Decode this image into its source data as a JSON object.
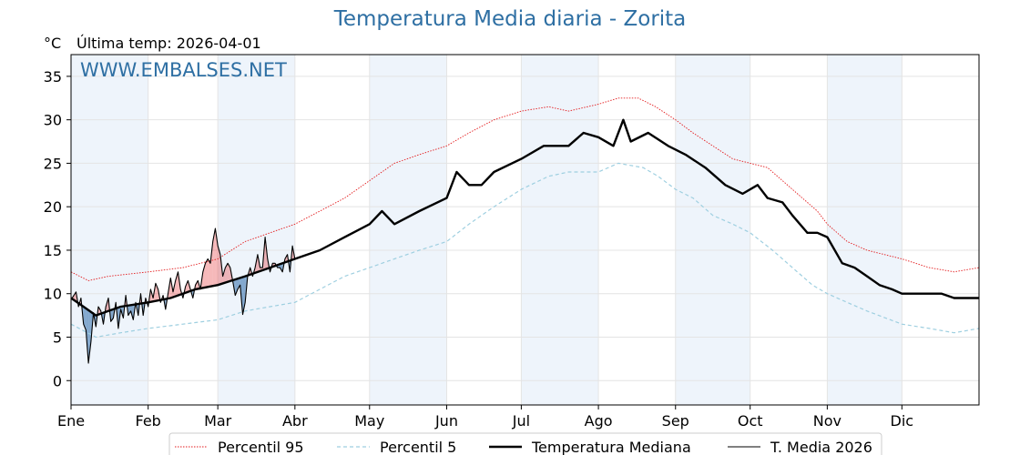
{
  "header": {
    "title": "Temperatura Media diaria - Zorita",
    "unit": "°C",
    "last_temp": "Última temp: 2026-04-01"
  },
  "watermark": "WWW.EMBALSES.NET",
  "colors": {
    "p95": "#e31a1c",
    "p5": "#9ecfe0",
    "median": "#000000",
    "current": "#000000",
    "fill_above": "#e8474a",
    "fill_below": "#4a7fb5",
    "band": "#eef4fb",
    "title": "#2e6fa3"
  },
  "chart_data": {
    "type": "line",
    "title": "Temperatura Media diaria - Zorita",
    "ylabel": "°C",
    "xlabel": "",
    "ylim": [
      -2.8,
      37.5
    ],
    "yticks": [
      0,
      5,
      10,
      15,
      20,
      25,
      30,
      35
    ],
    "xlim": [
      0,
      365
    ],
    "month_labels": [
      "Ene",
      "Feb",
      "Mar",
      "Abr",
      "May",
      "Jun",
      "Jul",
      "Ago",
      "Sep",
      "Oct",
      "Nov",
      "Dic"
    ],
    "month_starts": [
      0,
      31,
      59,
      90,
      120,
      151,
      181,
      212,
      243,
      273,
      304,
      334
    ],
    "shaded_months": [
      0,
      2,
      4,
      6,
      8,
      10
    ],
    "grid": true,
    "legend_position": "bottom",
    "series": [
      {
        "name": "Percentil 95",
        "style": "dotted-red",
        "points": [
          [
            0,
            12.5
          ],
          [
            7,
            11.5
          ],
          [
            15,
            12
          ],
          [
            31,
            12.5
          ],
          [
            45,
            13
          ],
          [
            59,
            14
          ],
          [
            70,
            16
          ],
          [
            80,
            17
          ],
          [
            90,
            18
          ],
          [
            100,
            19.5
          ],
          [
            110,
            21
          ],
          [
            120,
            23
          ],
          [
            130,
            25
          ],
          [
            140,
            26
          ],
          [
            151,
            27
          ],
          [
            160,
            28.5
          ],
          [
            170,
            30
          ],
          [
            181,
            31
          ],
          [
            192,
            31.5
          ],
          [
            200,
            31
          ],
          [
            212,
            31.8
          ],
          [
            220,
            32.5
          ],
          [
            228,
            32.5
          ],
          [
            235,
            31.5
          ],
          [
            243,
            30
          ],
          [
            250,
            28.5
          ],
          [
            258,
            27
          ],
          [
            266,
            25.5
          ],
          [
            273,
            25
          ],
          [
            280,
            24.5
          ],
          [
            290,
            22
          ],
          [
            300,
            19.5
          ],
          [
            304,
            18
          ],
          [
            312,
            16
          ],
          [
            320,
            15
          ],
          [
            334,
            14
          ],
          [
            345,
            13
          ],
          [
            355,
            12.5
          ],
          [
            365,
            13
          ]
        ]
      },
      {
        "name": "Percentil 5",
        "style": "dashed-lightblue",
        "points": [
          [
            0,
            6.5
          ],
          [
            10,
            5
          ],
          [
            20,
            5.5
          ],
          [
            31,
            6
          ],
          [
            45,
            6.5
          ],
          [
            59,
            7
          ],
          [
            70,
            8
          ],
          [
            80,
            8.5
          ],
          [
            90,
            9
          ],
          [
            100,
            10.5
          ],
          [
            110,
            12
          ],
          [
            120,
            13
          ],
          [
            130,
            14
          ],
          [
            140,
            15
          ],
          [
            151,
            16
          ],
          [
            160,
            18
          ],
          [
            170,
            20
          ],
          [
            181,
            22
          ],
          [
            192,
            23.5
          ],
          [
            200,
            24
          ],
          [
            212,
            24
          ],
          [
            220,
            25
          ],
          [
            230,
            24.5
          ],
          [
            236,
            23.5
          ],
          [
            243,
            22
          ],
          [
            250,
            21
          ],
          [
            258,
            19
          ],
          [
            266,
            18
          ],
          [
            273,
            17
          ],
          [
            282,
            15
          ],
          [
            290,
            13
          ],
          [
            298,
            11
          ],
          [
            304,
            10
          ],
          [
            312,
            9
          ],
          [
            320,
            8
          ],
          [
            334,
            6.5
          ],
          [
            345,
            6
          ],
          [
            355,
            5.5
          ],
          [
            365,
            6
          ]
        ]
      },
      {
        "name": "Temperatura Mediana",
        "style": "solid-black-thick",
        "points": [
          [
            0,
            9.5
          ],
          [
            5,
            8.5
          ],
          [
            10,
            7.5
          ],
          [
            15,
            8
          ],
          [
            20,
            8.5
          ],
          [
            31,
            9
          ],
          [
            40,
            9.5
          ],
          [
            50,
            10.5
          ],
          [
            59,
            11
          ],
          [
            70,
            12
          ],
          [
            80,
            13
          ],
          [
            90,
            14
          ],
          [
            100,
            15
          ],
          [
            110,
            16.5
          ],
          [
            120,
            18
          ],
          [
            125,
            19.5
          ],
          [
            130,
            18
          ],
          [
            140,
            19.5
          ],
          [
            151,
            21
          ],
          [
            155,
            24
          ],
          [
            160,
            22.5
          ],
          [
            165,
            22.5
          ],
          [
            170,
            24
          ],
          [
            181,
            25.5
          ],
          [
            190,
            27
          ],
          [
            200,
            27
          ],
          [
            206,
            28.5
          ],
          [
            212,
            28
          ],
          [
            218,
            27
          ],
          [
            222,
            30
          ],
          [
            225,
            27.5
          ],
          [
            232,
            28.5
          ],
          [
            240,
            27
          ],
          [
            247,
            26
          ],
          [
            255,
            24.5
          ],
          [
            263,
            22.5
          ],
          [
            270,
            21.5
          ],
          [
            276,
            22.5
          ],
          [
            280,
            21
          ],
          [
            286,
            20.5
          ],
          [
            290,
            19
          ],
          [
            296,
            17
          ],
          [
            300,
            17
          ],
          [
            304,
            16.5
          ],
          [
            310,
            13.5
          ],
          [
            315,
            13
          ],
          [
            320,
            12
          ],
          [
            325,
            11
          ],
          [
            330,
            10.5
          ],
          [
            334,
            10
          ],
          [
            340,
            10
          ],
          [
            345,
            10
          ],
          [
            350,
            10
          ],
          [
            355,
            9.5
          ],
          [
            360,
            9.5
          ],
          [
            365,
            9.5
          ]
        ]
      },
      {
        "name": "T. Media 2026",
        "style": "solid-black-thin",
        "points": [
          [
            0,
            9.3
          ],
          [
            2,
            10.2
          ],
          [
            3,
            8.5
          ],
          [
            4,
            9.5
          ],
          [
            5,
            6.5
          ],
          [
            6,
            5.8
          ],
          [
            7,
            2
          ],
          [
            8,
            4.5
          ],
          [
            9,
            7.8
          ],
          [
            10,
            6.2
          ],
          [
            11,
            8.5
          ],
          [
            12,
            8
          ],
          [
            13,
            6.5
          ],
          [
            14,
            8.5
          ],
          [
            15,
            9.5
          ],
          [
            16,
            6.8
          ],
          [
            17,
            7.2
          ],
          [
            18,
            9
          ],
          [
            19,
            6
          ],
          [
            20,
            8.2
          ],
          [
            21,
            7.2
          ],
          [
            22,
            9.8
          ],
          [
            23,
            7.5
          ],
          [
            24,
            8
          ],
          [
            25,
            7
          ],
          [
            26,
            9
          ],
          [
            27,
            7.5
          ],
          [
            28,
            10
          ],
          [
            29,
            7.5
          ],
          [
            30,
            9.5
          ],
          [
            31,
            8.5
          ],
          [
            32,
            10.5
          ],
          [
            33,
            9.5
          ],
          [
            34,
            11.2
          ],
          [
            35,
            10.5
          ],
          [
            36,
            9
          ],
          [
            37,
            9.8
          ],
          [
            38,
            8.2
          ],
          [
            39,
            10
          ],
          [
            40,
            11.8
          ],
          [
            41,
            10.2
          ],
          [
            42,
            11.5
          ],
          [
            43,
            12.5
          ],
          [
            44,
            10.5
          ],
          [
            45,
            9.5
          ],
          [
            46,
            10.8
          ],
          [
            47,
            11.5
          ],
          [
            48,
            10.5
          ],
          [
            49,
            9.5
          ],
          [
            50,
            11
          ],
          [
            51,
            11.5
          ],
          [
            52,
            10.5
          ],
          [
            53,
            12.5
          ],
          [
            54,
            13.5
          ],
          [
            55,
            14
          ],
          [
            56,
            13.5
          ],
          [
            57,
            16
          ],
          [
            58,
            17.5
          ],
          [
            59,
            15.5
          ],
          [
            60,
            14.5
          ],
          [
            61,
            12
          ],
          [
            62,
            13
          ],
          [
            63,
            13.5
          ],
          [
            64,
            13
          ],
          [
            65,
            11.5
          ],
          [
            66,
            9.8
          ],
          [
            67,
            10.5
          ],
          [
            68,
            11
          ],
          [
            69,
            7.6
          ],
          [
            70,
            9
          ],
          [
            71,
            12
          ],
          [
            72,
            13
          ],
          [
            73,
            12
          ],
          [
            74,
            13
          ],
          [
            75,
            14.5
          ],
          [
            76,
            13
          ],
          [
            77,
            13
          ],
          [
            78,
            16.5
          ],
          [
            79,
            14
          ],
          [
            80,
            12.5
          ],
          [
            81,
            13.5
          ],
          [
            82,
            13.5
          ],
          [
            83,
            13
          ],
          [
            84,
            13
          ],
          [
            85,
            12.5
          ],
          [
            86,
            14
          ],
          [
            87,
            14.5
          ],
          [
            88,
            12.5
          ],
          [
            89,
            15.5
          ],
          [
            90,
            14
          ]
        ]
      }
    ]
  },
  "legend": [
    {
      "label": "Percentil 95",
      "style": "dotted-red"
    },
    {
      "label": "Percentil 5",
      "style": "dashed-lightblue"
    },
    {
      "label": "Temperatura Mediana",
      "style": "solid-black-thick"
    },
    {
      "label": "T. Media 2026",
      "style": "solid-black-thin"
    }
  ]
}
